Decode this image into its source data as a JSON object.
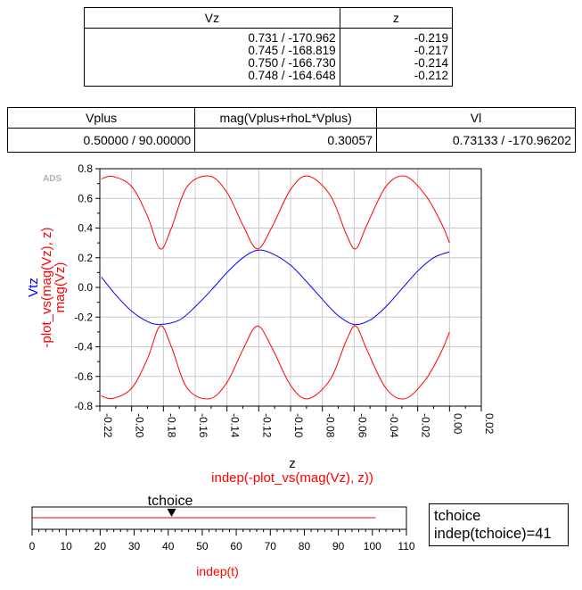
{
  "table1": {
    "headers": [
      "Vz",
      "z"
    ],
    "rows": [
      [
        "0.731 / -170.962",
        "-0.219"
      ],
      [
        "0.745 / -168.819",
        "-0.217"
      ],
      [
        "0.750 / -166.730",
        "-0.214"
      ],
      [
        "0.748 / -164.648",
        "-0.212"
      ]
    ]
  },
  "table2": {
    "headers": [
      "Vplus",
      "mag(Vplus+rhoL*Vplus)",
      "Vl"
    ],
    "row": [
      "0.50000 / 90.00000",
      "0.30057",
      "0.73133 / -170.96202"
    ]
  },
  "plot": {
    "watermark": "ADS",
    "ylabel_lines": [
      {
        "text": "Vtz",
        "color": "#0000ff"
      },
      {
        "text": "-plot_vs(mag(Vz), z)",
        "color": "#ff0000"
      },
      {
        "text": "mag(Vz)",
        "color": "#ff0000"
      }
    ],
    "xlabel_lines": [
      {
        "text": "z",
        "color": "#000000"
      },
      {
        "text": "indep(-plot_vs(mag(Vz), z))",
        "color": "#ff0000"
      }
    ]
  },
  "chart_data": [
    {
      "type": "line",
      "xlim": [
        -0.22,
        0.02
      ],
      "ylim": [
        -0.8,
        0.8
      ],
      "xticks": [
        "-0.22",
        "-0.20",
        "-0.18",
        "-0.16",
        "-0.14",
        "-0.12",
        "-0.10",
        "-0.08",
        "-0.06",
        "-0.04",
        "-0.02",
        "0.00",
        "0.02"
      ],
      "yticks": [
        "0.8",
        "0.6",
        "0.4",
        "0.2",
        "0.0",
        "-0.2",
        "-0.4",
        "-0.6",
        "-0.8"
      ],
      "grid": true,
      "xlabel": "z",
      "ylabel": "Vtz",
      "series": [
        {
          "name": "mag(Vz)",
          "color": "#ff0000",
          "x": [
            -0.219,
            -0.212,
            -0.2,
            -0.19,
            -0.182,
            -0.175,
            -0.165,
            -0.151,
            -0.14,
            -0.13,
            -0.121,
            -0.112,
            -0.1,
            -0.089,
            -0.075,
            -0.065,
            -0.059,
            -0.052,
            -0.04,
            -0.028,
            -0.015,
            -0.005,
            0.0
          ],
          "y": [
            0.731,
            0.748,
            0.68,
            0.48,
            0.26,
            0.4,
            0.68,
            0.75,
            0.64,
            0.42,
            0.26,
            0.4,
            0.66,
            0.75,
            0.62,
            0.36,
            0.26,
            0.42,
            0.68,
            0.75,
            0.62,
            0.43,
            0.3
          ]
        },
        {
          "name": "-plot_vs(mag(Vz), z)",
          "color": "#ff0000",
          "x": [
            -0.219,
            -0.212,
            -0.2,
            -0.19,
            -0.182,
            -0.175,
            -0.165,
            -0.151,
            -0.14,
            -0.13,
            -0.121,
            -0.112,
            -0.1,
            -0.089,
            -0.075,
            -0.065,
            -0.059,
            -0.052,
            -0.04,
            -0.028,
            -0.015,
            -0.005,
            0.0
          ],
          "y": [
            -0.731,
            -0.748,
            -0.68,
            -0.48,
            -0.26,
            -0.4,
            -0.68,
            -0.75,
            -0.64,
            -0.42,
            -0.26,
            -0.4,
            -0.66,
            -0.75,
            -0.62,
            -0.36,
            -0.26,
            -0.42,
            -0.68,
            -0.75,
            -0.62,
            -0.43,
            -0.3
          ]
        },
        {
          "name": "Vtz",
          "color": "#0000ff",
          "x": [
            -0.219,
            -0.21,
            -0.2,
            -0.19,
            -0.182,
            -0.17,
            -0.16,
            -0.15,
            -0.14,
            -0.13,
            -0.121,
            -0.112,
            -0.1,
            -0.09,
            -0.08,
            -0.07,
            -0.06,
            -0.05,
            -0.04,
            -0.03,
            -0.02,
            -0.01,
            0.0
          ],
          "y": [
            0.07,
            -0.05,
            -0.16,
            -0.23,
            -0.25,
            -0.22,
            -0.13,
            -0.02,
            0.1,
            0.2,
            0.25,
            0.23,
            0.15,
            0.04,
            -0.08,
            -0.19,
            -0.25,
            -0.22,
            -0.13,
            -0.01,
            0.11,
            0.2,
            0.24
          ]
        }
      ]
    },
    {
      "type": "line",
      "title": "tchoice",
      "xlim": [
        0,
        110
      ],
      "xticks": [
        "0",
        "10",
        "20",
        "30",
        "40",
        "50",
        "60",
        "70",
        "80",
        "90",
        "100",
        "110"
      ],
      "xlabel": "indep(t)",
      "marker_value": 41,
      "series": [
        {
          "color": "#ff0000",
          "x": [
            0,
            101
          ],
          "y": [
            0,
            0
          ]
        }
      ]
    }
  ],
  "slider_info": {
    "name": "tchoice",
    "value_text": "indep(tchoice)=41"
  }
}
